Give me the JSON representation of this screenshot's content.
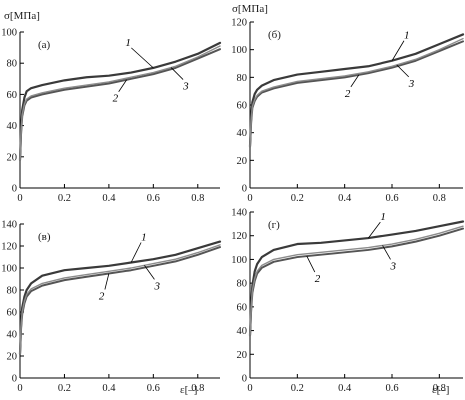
{
  "y_axis_label": "σ[МПа]",
  "x_axis_label": "ε[–]",
  "chart_data": [
    {
      "type": "line",
      "panel": "(а)",
      "title": "",
      "xlabel": "",
      "ylabel": "σ[МПа]",
      "xlim": [
        0,
        0.9
      ],
      "ylim": [
        0,
        100
      ],
      "xticks": [
        "0",
        "0.2",
        "0.4",
        "0.6",
        "0.8"
      ],
      "yticks": [
        "0",
        "20",
        "40",
        "60",
        "80",
        "100"
      ],
      "grid": false,
      "series": [
        {
          "name": "1",
          "x": [
            0,
            0.005,
            0.01,
            0.02,
            0.03,
            0.05,
            0.1,
            0.2,
            0.3,
            0.4,
            0.5,
            0.6,
            0.7,
            0.8,
            0.9
          ],
          "y": [
            18,
            38,
            50,
            58,
            62,
            64,
            66,
            69,
            71,
            72,
            74,
            77,
            81,
            86,
            93
          ]
        },
        {
          "name": "2",
          "x": [
            0,
            0.005,
            0.01,
            0.02,
            0.03,
            0.05,
            0.1,
            0.2,
            0.3,
            0.4,
            0.5,
            0.6,
            0.7,
            0.8,
            0.9
          ],
          "y": [
            18,
            36,
            46,
            53,
            56,
            58,
            60,
            63,
            65,
            67,
            70,
            73,
            77,
            83,
            89
          ]
        },
        {
          "name": "3",
          "x": [
            0,
            0.005,
            0.01,
            0.02,
            0.03,
            0.05,
            0.1,
            0.2,
            0.3,
            0.4,
            0.5,
            0.6,
            0.7,
            0.8,
            0.9
          ],
          "y": [
            18,
            36,
            47,
            54,
            57,
            59,
            61,
            64,
            66,
            68,
            71,
            74,
            78,
            84,
            91
          ]
        }
      ]
    },
    {
      "type": "line",
      "panel": "(б)",
      "title": "",
      "xlabel": "",
      "ylabel": "σ[МПа]",
      "xlim": [
        0,
        0.9
      ],
      "ylim": [
        0,
        120
      ],
      "xticks": [
        "0",
        "0.2",
        "0.4",
        "0.6",
        "0.8"
      ],
      "yticks": [
        "0",
        "20",
        "40",
        "60",
        "80",
        "100",
        "120"
      ],
      "grid": false,
      "series": [
        {
          "name": "1",
          "x": [
            0,
            0.005,
            0.01,
            0.02,
            0.03,
            0.05,
            0.1,
            0.2,
            0.3,
            0.4,
            0.5,
            0.6,
            0.7,
            0.8,
            0.9
          ],
          "y": [
            30,
            52,
            62,
            68,
            71,
            74,
            78,
            82,
            84,
            86,
            88,
            92,
            97,
            104,
            111
          ]
        },
        {
          "name": "2",
          "x": [
            0,
            0.005,
            0.01,
            0.02,
            0.03,
            0.05,
            0.1,
            0.2,
            0.3,
            0.4,
            0.5,
            0.6,
            0.7,
            0.8,
            0.9
          ],
          "y": [
            30,
            48,
            58,
            63,
            66,
            69,
            72,
            76,
            78,
            80,
            83,
            87,
            92,
            99,
            106
          ]
        },
        {
          "name": "3",
          "x": [
            0,
            0.005,
            0.01,
            0.02,
            0.03,
            0.05,
            0.1,
            0.2,
            0.3,
            0.4,
            0.5,
            0.6,
            0.7,
            0.8,
            0.9
          ],
          "y": [
            30,
            49,
            59,
            64,
            67,
            70,
            73,
            77,
            79,
            81,
            84,
            88,
            93,
            100,
            108
          ]
        }
      ]
    },
    {
      "type": "line",
      "panel": "(в)",
      "title": "",
      "xlabel": "ε[–]",
      "ylabel": "",
      "xlim": [
        0,
        0.9
      ],
      "ylim": [
        0,
        140
      ],
      "xticks": [
        "0",
        "0.2",
        "0.4",
        "0.6",
        "0.8"
      ],
      "yticks": [
        "0",
        "20",
        "40",
        "60",
        "80",
        "100",
        "120",
        "140"
      ],
      "grid": false,
      "series": [
        {
          "name": "1",
          "x": [
            0,
            0.005,
            0.01,
            0.02,
            0.03,
            0.05,
            0.1,
            0.2,
            0.3,
            0.4,
            0.5,
            0.6,
            0.7,
            0.8,
            0.9
          ],
          "y": [
            22,
            50,
            64,
            74,
            80,
            86,
            93,
            98,
            100,
            102,
            105,
            108,
            112,
            118,
            124
          ]
        },
        {
          "name": "2",
          "x": [
            0,
            0.005,
            0.01,
            0.02,
            0.03,
            0.05,
            0.1,
            0.2,
            0.3,
            0.4,
            0.5,
            0.6,
            0.7,
            0.8,
            0.9
          ],
          "y": [
            22,
            46,
            58,
            68,
            74,
            79,
            84,
            89,
            92,
            95,
            98,
            102,
            106,
            112,
            119
          ]
        },
        {
          "name": "3",
          "x": [
            0,
            0.005,
            0.01,
            0.02,
            0.03,
            0.05,
            0.1,
            0.2,
            0.3,
            0.4,
            0.5,
            0.6,
            0.7,
            0.8,
            0.9
          ],
          "y": [
            22,
            47,
            60,
            70,
            76,
            81,
            86,
            91,
            94,
            97,
            100,
            104,
            108,
            114,
            121
          ]
        }
      ]
    },
    {
      "type": "line",
      "panel": "(г)",
      "title": "",
      "xlabel": "ε[–]",
      "ylabel": "",
      "xlim": [
        0,
        0.9
      ],
      "ylim": [
        0,
        140
      ],
      "xticks": [
        "0",
        "0.2",
        "0.4",
        "0.6",
        "0.8"
      ],
      "yticks": [
        "0",
        "20",
        "40",
        "60",
        "80",
        "100",
        "120",
        "140"
      ],
      "grid": false,
      "series": [
        {
          "name": "1",
          "x": [
            0,
            0.005,
            0.01,
            0.02,
            0.03,
            0.05,
            0.1,
            0.2,
            0.3,
            0.4,
            0.5,
            0.6,
            0.7,
            0.8,
            0.9
          ],
          "y": [
            36,
            62,
            78,
            90,
            96,
            102,
            108,
            113,
            114,
            116,
            118,
            121,
            124,
            128,
            132
          ]
        },
        {
          "name": "2",
          "x": [
            0,
            0.005,
            0.01,
            0.02,
            0.03,
            0.05,
            0.1,
            0.2,
            0.3,
            0.4,
            0.5,
            0.6,
            0.7,
            0.8,
            0.9
          ],
          "y": [
            36,
            58,
            72,
            82,
            88,
            93,
            98,
            102,
            104,
            106,
            108,
            111,
            115,
            120,
            126
          ]
        },
        {
          "name": "3",
          "x": [
            0,
            0.005,
            0.01,
            0.02,
            0.03,
            0.05,
            0.1,
            0.2,
            0.3,
            0.4,
            0.5,
            0.6,
            0.7,
            0.8,
            0.9
          ],
          "y": [
            36,
            59,
            74,
            84,
            90,
            95,
            100,
            104,
            106,
            108,
            110,
            113,
            117,
            122,
            128
          ]
        }
      ]
    }
  ],
  "series_style": {
    "1": {
      "color": "#3a3a3a"
    },
    "2": {
      "color": "#555555"
    },
    "3": {
      "color": "#8c8c8c"
    }
  }
}
